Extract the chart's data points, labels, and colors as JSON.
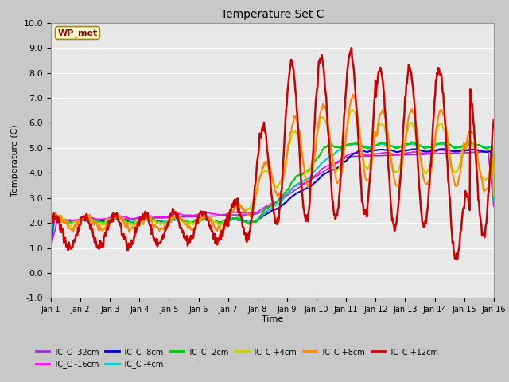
{
  "title": "Temperature Set C",
  "xlabel": "Time",
  "ylabel": "Temperature (C)",
  "ylim": [
    -1.0,
    10.0
  ],
  "yticks": [
    -1.0,
    0.0,
    1.0,
    2.0,
    3.0,
    4.0,
    5.0,
    6.0,
    7.0,
    8.0,
    9.0,
    10.0
  ],
  "fig_bg": "#c8c8c8",
  "plot_bg": "#e8e8e8",
  "wp_met_label": "WP_met",
  "wp_met_bg": "#ffffcc",
  "wp_met_border": "#aa8800",
  "wp_met_text": "#880000",
  "series_names": [
    "TC_C -32cm",
    "TC_C -16cm",
    "TC_C -8cm",
    "TC_C -4cm",
    "TC_C -2cm",
    "TC_C +4cm",
    "TC_C +8cm",
    "TC_C +12cm"
  ],
  "series_colors": [
    "#9933cc",
    "#ff00ff",
    "#0000cc",
    "#00cccc",
    "#00cc00",
    "#cccc00",
    "#ff8800",
    "#cc0000"
  ],
  "series_lws": [
    1.2,
    1.2,
    1.5,
    1.5,
    1.5,
    1.5,
    1.5,
    1.8
  ],
  "days": 15,
  "n_points": 720
}
